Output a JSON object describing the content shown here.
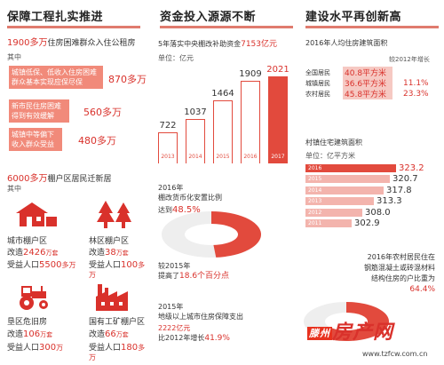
{
  "col1": {
    "title": "保障工程扎实推进",
    "line1_num": "1900多万",
    "line1_text": "住房困难群众入住公租房",
    "qizhong": "其中",
    "box1": [
      "城镇低保、低收入住房困难",
      "群众基本实现应保尽保"
    ],
    "box1_val": "870多万",
    "box2": [
      "新市民住房困难",
      "得到有效缓解"
    ],
    "box2_val": "560多万",
    "box3": [
      "城镇中等偏下",
      "收入群众受益"
    ],
    "box3_val": "480多万",
    "line2_num": "6000多万",
    "line2_text": "棚户区居民迁新居",
    "qizhong2": "其中",
    "items": [
      {
        "name": "城市棚户区",
        "l1p": "改造",
        "l1v": "2426",
        "l1s": "万套",
        "l2p": "受益人口",
        "l2v": "5500",
        "l2s": "多万",
        "icon": "house-icon"
      },
      {
        "name": "林区棚户区",
        "l1p": "改造",
        "l1v": "38",
        "l1s": "万套",
        "l2p": "受益人口",
        "l2v": "100",
        "l2s": "多万",
        "icon": "tree-icon"
      },
      {
        "name": "垦区危旧房",
        "l1p": "改造",
        "l1v": "106",
        "l1s": "万套",
        "l2p": "受益人口",
        "l2v": "300",
        "l2s": "万",
        "icon": "tractor-icon"
      },
      {
        "name": "国有工矿棚户区",
        "l1p": "改造",
        "l1v": "66",
        "l1s": "万套",
        "l2p": "受益人口",
        "l2v": "180",
        "l2s": "多万",
        "icon": "factory-icon"
      }
    ]
  },
  "col2": {
    "title": "资金投入源源不断",
    "subtitle_pre": "5年落实中央棚改补助资金",
    "subtitle_val": "7153亿元",
    "unit": "单位：亿元",
    "donut1_lines": [
      "2016年",
      "棚改货币化安置比例"
    ],
    "donut1_pre": "达到",
    "donut1_val": "48.5%",
    "donut1_cmp": "较2015年",
    "donut1_inc_pre": "提高了",
    "donut1_inc": "18.6个百分点",
    "donut2_lines": [
      "2015年",
      "地级以上城市住房保障支出"
    ],
    "donut2_val": "2222亿元",
    "donut2_inc_pre": "比2012年增长",
    "donut2_inc": "41.9%"
  },
  "chart_data": [
    {
      "type": "bar",
      "categories": [
        "2013",
        "2014",
        "2015",
        "2016",
        "2017"
      ],
      "values": [
        722,
        1037,
        1464,
        1909,
        2021
      ],
      "title": "5年落实中央棚改补助资金7153亿元",
      "ylabel": "单位：亿元"
    },
    {
      "type": "bar",
      "title": "2016年人均住房建筑面积",
      "categories": [
        "全国居民",
        "城镇居民",
        "农村居民"
      ],
      "values": [
        40.8,
        36.6,
        45.8
      ],
      "unit": "平方米",
      "growth_label": "较2012年增长",
      "growth": [
        "",
        "11.1%",
        "23.3%"
      ]
    },
    {
      "type": "bar",
      "title": "村镇住宅建筑面积",
      "ylabel": "单位：亿平方米",
      "categories": [
        "2016",
        "2015",
        "2014",
        "2013",
        "2012",
        "2011"
      ],
      "values": [
        323.2,
        320.7,
        317.8,
        313.3,
        308.0,
        302.9
      ]
    },
    {
      "type": "pie",
      "title": "2016年棚改货币化安置比例",
      "values": [
        48.5
      ]
    },
    {
      "type": "pie",
      "title": "2016年农村居民住在钢筋混凝土或砖混等材料结构住房的户比重",
      "values": [
        64.4
      ]
    }
  ],
  "col3": {
    "title": "建设水平再创新高",
    "sub1": "2016年人均住房建筑面积",
    "growth_label": "较2012年增长",
    "rows": [
      {
        "label": "全国居民",
        "val": "40.8平方米",
        "growth": ""
      },
      {
        "label": "城镇居民",
        "val": "36.6平方米",
        "growth": "11.1%"
      },
      {
        "label": "农村居民",
        "val": "45.8平方米",
        "growth": "23.3%"
      }
    ],
    "sub2": "村镇住宅建筑面积",
    "unit2": "单位：亿平方米",
    "donut3_lines": [
      "2016年农村居民住在",
      "钢筋混凝土或砖混材料",
      "结构住房的户比重为"
    ],
    "donut3_val": "64.4%",
    "watermark": "滕州房产网",
    "url": "www.tzfcw.com.cn"
  }
}
